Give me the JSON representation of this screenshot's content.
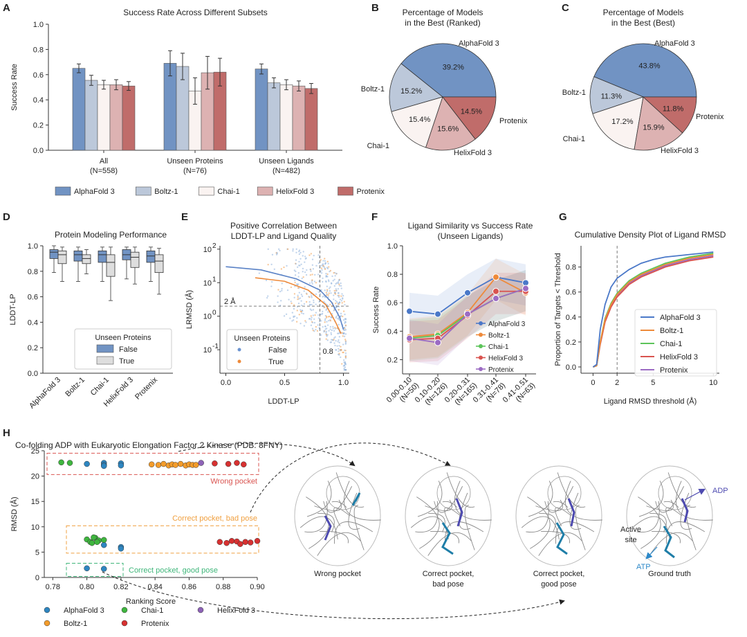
{
  "panels": {
    "A": "A",
    "B": "B",
    "C": "C",
    "D": "D",
    "E": "E",
    "F": "F",
    "G": "G",
    "H": "H"
  },
  "models": [
    "AlphaFold 3",
    "Boltz-1",
    "Chai-1",
    "HelixFold 3",
    "Protenix"
  ],
  "colors": {
    "AlphaFold 3": "#7193c3",
    "Boltz-1": "#bcc8da",
    "Chai-1": "#faf3f1",
    "HelixFold 3": "#ddb2b2",
    "Protenix": "#c06c6a"
  },
  "line_colors": {
    "AlphaFold 3": "#4a78c8",
    "Boltz-1": "#ee8a3a",
    "Chai-1": "#5cc45a",
    "HelixFold 3": "#d9534f",
    "Protenix": "#9b6bc3"
  },
  "pointH_colors": {
    "AlphaFold 3": "#2e86c1",
    "Boltz-1": "#f39c2b",
    "Chai-1": "#3fb63f",
    "HelixFold 3": "#8e63b8",
    "Protenix": "#d73131"
  },
  "chart_data": [
    {
      "id": "A",
      "type": "bar",
      "title": "Success Rate Across Different Subsets",
      "ylabel": "Success Rate",
      "ylim": [
        0,
        1
      ],
      "yticks": [
        "0.0",
        "0.2",
        "0.4",
        "0.6",
        "0.8",
        "1.0"
      ],
      "categories": [
        [
          "All",
          "(N=558)"
        ],
        [
          "Unseen Proteins",
          "(N=76)"
        ],
        [
          "Unseen Ligands",
          "(N=482)"
        ]
      ],
      "series": [
        {
          "name": "AlphaFold 3",
          "values": [
            0.65,
            0.69,
            0.645
          ],
          "err": [
            0.035,
            0.1,
            0.04
          ]
        },
        {
          "name": "Boltz-1",
          "values": [
            0.555,
            0.665,
            0.535
          ],
          "err": [
            0.04,
            0.105,
            0.04
          ]
        },
        {
          "name": "Chai-1",
          "values": [
            0.52,
            0.47,
            0.52
          ],
          "err": [
            0.035,
            0.105,
            0.04
          ]
        },
        {
          "name": "HelixFold 3",
          "values": [
            0.52,
            0.615,
            0.51
          ],
          "err": [
            0.04,
            0.13,
            0.04
          ]
        },
        {
          "name": "Protenix",
          "values": [
            0.51,
            0.62,
            0.49
          ],
          "err": [
            0.035,
            0.11,
            0.04
          ]
        }
      ]
    },
    {
      "id": "B",
      "type": "pie",
      "title": [
        "Percentage of Models",
        "in the Best (Ranked)"
      ],
      "slices": [
        {
          "label": "AlphaFold 3",
          "value": 39.2,
          "pct": "39.2%"
        },
        {
          "label": "Boltz-1",
          "value": 15.2,
          "pct": "15.2%"
        },
        {
          "label": "Chai-1",
          "value": 15.4,
          "pct": "15.4%"
        },
        {
          "label": "HelixFold 3",
          "value": 15.6,
          "pct": "15.6%"
        },
        {
          "label": "Protenix",
          "value": 14.5,
          "pct": "14.5%"
        }
      ]
    },
    {
      "id": "C",
      "type": "pie",
      "title": [
        "Percentage of Models",
        "in the Best (Best)"
      ],
      "slices": [
        {
          "label": "AlphaFold 3",
          "value": 43.8,
          "pct": "43.8%"
        },
        {
          "label": "Boltz-1",
          "value": 11.3,
          "pct": "11.3%"
        },
        {
          "label": "Chai-1",
          "value": 17.2,
          "pct": "17.2%"
        },
        {
          "label": "HelixFold 3",
          "value": 15.9,
          "pct": "15.9%"
        },
        {
          "label": "Protenix",
          "value": 11.8,
          "pct": "11.8%"
        }
      ]
    },
    {
      "id": "D",
      "type": "box",
      "title": "Protein Modeling Performance",
      "ylabel": "LDDT-LP",
      "ylim": [
        0,
        1
      ],
      "yticks": [
        "0.0",
        "0.2",
        "0.4",
        "0.6",
        "0.8",
        "1.0"
      ],
      "legend": {
        "title": "Unseen Proteins",
        "entries": [
          "False",
          "True"
        ]
      },
      "groups": [
        {
          "name": "AlphaFold 3",
          "false": [
            0.79,
            0.9,
            0.95,
            0.97,
            1.0
          ],
          "true": [
            0.72,
            0.86,
            0.93,
            0.96,
            0.99
          ]
        },
        {
          "name": "Boltz-1",
          "false": [
            0.72,
            0.88,
            0.93,
            0.96,
            0.99
          ],
          "true": [
            0.78,
            0.86,
            0.9,
            0.93,
            0.97
          ]
        },
        {
          "name": "Chai-1",
          "false": [
            0.72,
            0.87,
            0.93,
            0.96,
            0.99
          ],
          "true": [
            0.57,
            0.76,
            0.87,
            0.93,
            0.99
          ]
        },
        {
          "name": "HelixFold 3",
          "false": [
            0.74,
            0.89,
            0.93,
            0.97,
            0.99
          ],
          "true": [
            0.7,
            0.83,
            0.91,
            0.95,
            0.99
          ]
        },
        {
          "name": "Protenix",
          "false": [
            0.72,
            0.87,
            0.92,
            0.96,
            0.99
          ],
          "true": [
            0.62,
            0.79,
            0.88,
            0.93,
            0.98
          ]
        }
      ]
    },
    {
      "id": "E",
      "type": "scatter",
      "title": [
        "Positive Correlation Between",
        "LDDT-LP and Ligand Quality"
      ],
      "xlabel": "LDDT-LP",
      "ylabel": "LRMSD (Å)",
      "xlim": [
        -0.05,
        1.05
      ],
      "ylim_log10": [
        -1.7,
        2.1
      ],
      "xticks": [
        "0.0",
        "0.5",
        "1.0"
      ],
      "legend": {
        "title": "Unseen Proteins",
        "entries": [
          "False",
          "True"
        ]
      },
      "annotations": [
        "2 Å",
        "0.8"
      ],
      "fit_false": [
        [
          0.0,
          30
        ],
        [
          0.3,
          24
        ],
        [
          0.6,
          13
        ],
        [
          0.8,
          6
        ],
        [
          0.9,
          2.6
        ],
        [
          0.97,
          0.9
        ],
        [
          1.0,
          0.4
        ]
      ],
      "fit_true": [
        [
          0.25,
          14
        ],
        [
          0.5,
          11
        ],
        [
          0.7,
          6
        ],
        [
          0.85,
          2.2
        ],
        [
          0.93,
          0.7
        ],
        [
          0.98,
          0.3
        ]
      ]
    },
    {
      "id": "F",
      "type": "line",
      "title": [
        "Ligand Similarity vs Success Rate",
        "(Unseen Ligands)"
      ],
      "ylabel": "Success Rate",
      "ylim": [
        0.1,
        1.0
      ],
      "yticks": [
        "0.2",
        "0.4",
        "0.6",
        "0.8",
        "1.0"
      ],
      "categories": [
        [
          "0.00-0.10",
          "(N=50)"
        ],
        [
          "0.10-0.20",
          "(N=126)"
        ],
        [
          "0.20-0.31",
          "(N=165)"
        ],
        [
          "0.31-0.41",
          "(N=78)"
        ],
        [
          "0.41-0.51",
          "(N=63)"
        ]
      ],
      "series": [
        {
          "name": "AlphaFold 3",
          "values": [
            0.54,
            0.52,
            0.67,
            0.78,
            0.74
          ]
        },
        {
          "name": "Boltz-1",
          "values": [
            0.36,
            0.38,
            0.53,
            0.78,
            0.67
          ]
        },
        {
          "name": "Chai-1",
          "values": [
            0.35,
            0.37,
            0.52,
            0.63,
            0.7
          ]
        },
        {
          "name": "HelixFold 3",
          "values": [
            0.34,
            0.35,
            0.51,
            0.68,
            0.68
          ]
        },
        {
          "name": "Protenix",
          "values": [
            0.35,
            0.32,
            0.52,
            0.63,
            0.7
          ]
        }
      ]
    },
    {
      "id": "G",
      "type": "line",
      "title": "Cumulative Density Plot of Ligand RMSD",
      "xlabel": "Ligand RMSD threshold (Å)",
      "ylabel": "Proportion of Targets < Threshold",
      "xlim": [
        -1,
        10.5
      ],
      "ylim": [
        -0.05,
        0.97
      ],
      "xticks": [
        "0",
        "2",
        "5",
        "10"
      ],
      "yticks": [
        "0.0",
        "0.2",
        "0.4",
        "0.6",
        "0.8"
      ],
      "series": [
        {
          "name": "AlphaFold 3",
          "x": [
            0,
            0.3,
            0.6,
            1,
            1.5,
            2,
            3,
            4,
            5,
            6,
            8,
            10
          ],
          "y": [
            0,
            0.02,
            0.3,
            0.5,
            0.64,
            0.71,
            0.78,
            0.83,
            0.86,
            0.88,
            0.9,
            0.92
          ]
        },
        {
          "name": "Boltz-1",
          "x": [
            0,
            0.3,
            0.6,
            1,
            1.5,
            2,
            3,
            4,
            5,
            6,
            8,
            10
          ],
          "y": [
            0,
            0.01,
            0.2,
            0.38,
            0.5,
            0.58,
            0.68,
            0.74,
            0.78,
            0.82,
            0.87,
            0.9
          ]
        },
        {
          "name": "Chai-1",
          "x": [
            0,
            0.3,
            0.6,
            1,
            1.5,
            2,
            3,
            4,
            5,
            6,
            8,
            10
          ],
          "y": [
            0,
            0.01,
            0.2,
            0.39,
            0.51,
            0.59,
            0.69,
            0.75,
            0.79,
            0.83,
            0.88,
            0.91
          ]
        },
        {
          "name": "HelixFold 3",
          "x": [
            0,
            0.3,
            0.6,
            1,
            1.5,
            2,
            3,
            4,
            5,
            6,
            8,
            10
          ],
          "y": [
            0,
            0.01,
            0.18,
            0.36,
            0.48,
            0.56,
            0.66,
            0.72,
            0.76,
            0.8,
            0.85,
            0.88
          ]
        },
        {
          "name": "Protenix",
          "x": [
            0,
            0.3,
            0.6,
            1,
            1.5,
            2,
            3,
            4,
            5,
            6,
            8,
            10
          ],
          "y": [
            0,
            0.01,
            0.19,
            0.37,
            0.5,
            0.57,
            0.67,
            0.73,
            0.77,
            0.81,
            0.86,
            0.89
          ]
        }
      ]
    },
    {
      "id": "H",
      "type": "scatter",
      "title": "Co-folding ADP with Eukaryotic Elongation Factor 2 Kinase (PDB: 8FNY)",
      "xlabel": "Ranking Score",
      "ylabel": "RMSD (Å)",
      "xlim": [
        0.775,
        0.9
      ],
      "ylim": [
        0,
        25
      ],
      "xticks": [
        "0.78",
        "0.80",
        "0.82",
        "0.84",
        "0.86",
        "0.88",
        "0.90"
      ],
      "yticks": [
        "0",
        "5",
        "10",
        "15",
        "20",
        "25"
      ],
      "boxes": [
        "Wrong pocket",
        "Correct pocket, bad pose",
        "Correct pocket, good pose"
      ],
      "points": {
        "AlphaFold 3": [
          [
            0.8,
            22.4
          ],
          [
            0.81,
            22.6
          ],
          [
            0.81,
            22.2
          ],
          [
            0.81,
            22.0
          ],
          [
            0.82,
            22.5
          ],
          [
            0.82,
            22.1
          ],
          [
            0.81,
            6.4
          ],
          [
            0.82,
            6.0
          ],
          [
            0.82,
            5.7
          ],
          [
            0.8,
            1.8
          ],
          [
            0.81,
            1.7
          ]
        ],
        "Chai-1": [
          [
            0.785,
            22.7
          ],
          [
            0.79,
            22.6
          ],
          [
            0.8,
            7.5
          ],
          [
            0.802,
            7.0
          ],
          [
            0.805,
            7.8
          ],
          [
            0.807,
            7.3
          ],
          [
            0.803,
            6.8
          ],
          [
            0.81,
            7.4
          ],
          [
            0.806,
            7.0
          ],
          [
            0.804,
            7.9
          ]
        ],
        "Boltz-1": [
          [
            0.838,
            22.3
          ],
          [
            0.842,
            22.2
          ],
          [
            0.845,
            22.4
          ],
          [
            0.848,
            22.1
          ],
          [
            0.85,
            22.3
          ],
          [
            0.852,
            22.2
          ],
          [
            0.855,
            22.4
          ],
          [
            0.858,
            22.1
          ],
          [
            0.86,
            22.3
          ],
          [
            0.862,
            22.2
          ],
          [
            0.864,
            22.2
          ]
        ],
        "HelixFold 3": [
          [
            0.867,
            22.6
          ]
        ],
        "Protenix": [
          [
            0.875,
            22.5
          ],
          [
            0.883,
            22.4
          ],
          [
            0.888,
            22.6
          ],
          [
            0.892,
            22.3
          ],
          [
            0.878,
            7.0
          ],
          [
            0.882,
            6.8
          ],
          [
            0.885,
            7.2
          ],
          [
            0.888,
            7.1
          ],
          [
            0.89,
            6.6
          ],
          [
            0.893,
            7.0
          ],
          [
            0.896,
            6.9
          ],
          [
            0.9,
            7.2
          ]
        ]
      },
      "legend": [
        "AlphaFold 3",
        "Boltz-1",
        "Chai-1",
        "Protenix",
        "HelixFold 3"
      ]
    }
  ],
  "structures": {
    "captions": [
      [
        "Wrong pocket"
      ],
      [
        "Correct pocket,",
        "bad pose"
      ],
      [
        "Correct pocket,",
        "good pose"
      ],
      [
        "Ground truth"
      ]
    ],
    "labels": {
      "adp": "ADP",
      "atp": "ATP",
      "active": [
        "Active",
        "site"
      ]
    }
  }
}
